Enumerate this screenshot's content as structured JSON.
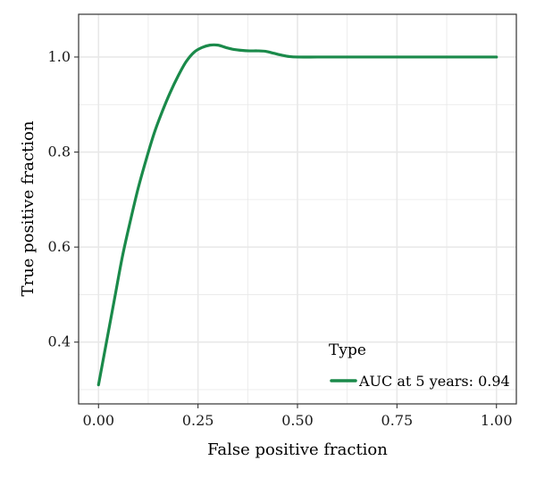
{
  "chart_data": {
    "type": "line",
    "xlabel": "False positive fraction",
    "ylabel": "True positive fraction",
    "xlim": [
      -0.05,
      1.05
    ],
    "ylim": [
      0.27,
      1.09
    ],
    "x_ticks": [
      0.0,
      0.25,
      0.5,
      0.75,
      1.0
    ],
    "x_tick_labels": [
      "0.00",
      "0.25",
      "0.50",
      "0.75",
      "1.00"
    ],
    "y_ticks": [
      0.4,
      0.6,
      0.8,
      1.0
    ],
    "y_tick_labels": [
      "0.4",
      "0.6",
      "0.8",
      "1.0"
    ],
    "grid": true,
    "legend": {
      "title": "Type",
      "placement": "bottom-right",
      "entries": [
        "AUC at 5 years: 0.94"
      ]
    },
    "colors": {
      "series": "#1a8a4a",
      "grid": "#e8e8e8",
      "panel_border": "#333333"
    },
    "series": [
      {
        "name": "AUC at 5 years: 0.94",
        "x": [
          0.0,
          0.02,
          0.04,
          0.06,
          0.08,
          0.1,
          0.12,
          0.14,
          0.16,
          0.18,
          0.2,
          0.22,
          0.24,
          0.26,
          0.28,
          0.3,
          0.32,
          0.34,
          0.36,
          0.38,
          0.4,
          0.42,
          0.44,
          0.46,
          0.48,
          0.5,
          0.55,
          0.6,
          0.65,
          0.7,
          0.75,
          0.8,
          0.85,
          0.9,
          0.95,
          1.0
        ],
        "y": [
          0.31,
          0.4,
          0.49,
          0.58,
          0.655,
          0.725,
          0.785,
          0.84,
          0.885,
          0.925,
          0.96,
          0.99,
          1.01,
          1.02,
          1.025,
          1.025,
          1.02,
          1.016,
          1.014,
          1.013,
          1.013,
          1.012,
          1.008,
          1.004,
          1.001,
          1.0,
          1.0,
          1.0,
          1.0,
          1.0,
          1.0,
          1.0,
          1.0,
          1.0,
          1.0,
          1.0
        ]
      }
    ]
  }
}
